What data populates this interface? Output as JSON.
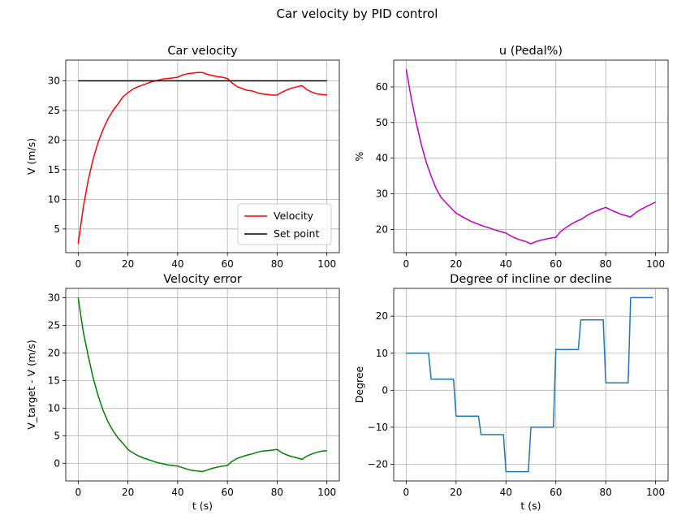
{
  "figure": {
    "suptitle": "Car velocity by PID control"
  },
  "chart_data": [
    {
      "type": "line",
      "title": "Car velocity",
      "xlabel": "",
      "ylabel": "V (m/s)",
      "xlim": [
        -5,
        105
      ],
      "ylim": [
        1,
        33.5
      ],
      "xticks": [
        0,
        20,
        40,
        60,
        80,
        100
      ],
      "yticks": [
        5,
        10,
        15,
        20,
        25,
        30
      ],
      "grid": true,
      "legend": "lower-right",
      "series": [
        {
          "name": "Velocity",
          "color": "#ff0000",
          "x": [
            0,
            2,
            4,
            6,
            8,
            10,
            12,
            14,
            16,
            18,
            20,
            22,
            24,
            26,
            28,
            30,
            32,
            34,
            36,
            38,
            40,
            42,
            44,
            46,
            48,
            50,
            52,
            54,
            56,
            58,
            60,
            62,
            64,
            66,
            68,
            70,
            72,
            74,
            76,
            78,
            80,
            82,
            84,
            86,
            88,
            90,
            92,
            94,
            96,
            98,
            100
          ],
          "values": [
            2.5,
            8.5,
            13.2,
            16.8,
            19.6,
            21.8,
            23.6,
            25.0,
            26.1,
            27.3,
            28.0,
            28.6,
            29.0,
            29.3,
            29.6,
            29.9,
            30.1,
            30.3,
            30.4,
            30.5,
            30.6,
            31.0,
            31.2,
            31.3,
            31.4,
            31.4,
            31.1,
            30.9,
            30.7,
            30.6,
            30.4,
            29.6,
            29.0,
            28.7,
            28.4,
            28.3,
            28.0,
            27.8,
            27.7,
            27.6,
            27.6,
            28.1,
            28.5,
            28.8,
            29.0,
            29.2,
            28.5,
            28.1,
            27.8,
            27.7,
            27.6
          ]
        },
        {
          "name": "Set point",
          "color": "#000000",
          "x": [
            0,
            100
          ],
          "values": [
            30,
            30
          ]
        }
      ]
    },
    {
      "type": "line",
      "title": "u (Pedal%)",
      "xlabel": "",
      "ylabel": "%",
      "xlim": [
        -5,
        105
      ],
      "ylim": [
        13.5,
        67.5
      ],
      "xticks": [
        0,
        20,
        40,
        60,
        80,
        100
      ],
      "yticks": [
        20,
        30,
        40,
        50,
        60
      ],
      "grid": true,
      "series": [
        {
          "color": "#bf00bf",
          "x": [
            0,
            2,
            4,
            6,
            8,
            10,
            12,
            14,
            16,
            18,
            20,
            22,
            24,
            26,
            28,
            30,
            32,
            34,
            36,
            38,
            40,
            42,
            44,
            46,
            48,
            50,
            52,
            54,
            56,
            58,
            60,
            62,
            64,
            66,
            68,
            70,
            72,
            74,
            76,
            78,
            80,
            82,
            84,
            86,
            88,
            90,
            92,
            94,
            96,
            98,
            100
          ],
          "values": [
            65.0,
            57.0,
            50.0,
            44.0,
            39.0,
            35.0,
            31.5,
            29.0,
            27.5,
            26.0,
            24.6,
            23.8,
            23.0,
            22.3,
            21.7,
            21.2,
            20.7,
            20.3,
            19.8,
            19.4,
            19.0,
            18.2,
            17.5,
            17.0,
            16.6,
            16.0,
            16.6,
            17.0,
            17.3,
            17.6,
            17.8,
            19.5,
            20.5,
            21.4,
            22.2,
            22.8,
            23.7,
            24.5,
            25.1,
            25.7,
            26.2,
            25.5,
            24.9,
            24.3,
            23.9,
            23.5,
            24.7,
            25.6,
            26.3,
            27.0,
            27.7
          ]
        }
      ]
    },
    {
      "type": "line",
      "title": "Velocity error",
      "xlabel": "t (s)",
      "ylabel": "V_target - V (m/s)",
      "xlim": [
        -5,
        105
      ],
      "ylim": [
        -3.2,
        31.7
      ],
      "xticks": [
        0,
        20,
        40,
        60,
        80,
        100
      ],
      "yticks": [
        0,
        5,
        10,
        15,
        20,
        25,
        30
      ],
      "grid": true,
      "series": [
        {
          "color": "#007f00",
          "x": [
            0,
            2,
            4,
            6,
            8,
            10,
            12,
            14,
            16,
            18,
            20,
            22,
            24,
            26,
            28,
            30,
            32,
            34,
            36,
            38,
            40,
            42,
            44,
            46,
            48,
            50,
            52,
            54,
            56,
            58,
            60,
            62,
            64,
            66,
            68,
            70,
            72,
            74,
            76,
            78,
            80,
            82,
            84,
            86,
            88,
            90,
            92,
            94,
            96,
            98,
            100
          ],
          "values": [
            30.0,
            24.0,
            19.5,
            15.5,
            12.3,
            9.6,
            7.5,
            5.9,
            4.6,
            3.6,
            2.5,
            1.9,
            1.4,
            1.0,
            0.7,
            0.4,
            0.1,
            -0.1,
            -0.3,
            -0.4,
            -0.5,
            -0.8,
            -1.1,
            -1.3,
            -1.4,
            -1.5,
            -1.2,
            -0.9,
            -0.7,
            -0.5,
            -0.4,
            0.4,
            0.9,
            1.2,
            1.5,
            1.7,
            2.0,
            2.2,
            2.3,
            2.4,
            2.5,
            1.9,
            1.5,
            1.2,
            1.0,
            0.7,
            1.3,
            1.7,
            2.0,
            2.2,
            2.3
          ]
        }
      ]
    },
    {
      "type": "line",
      "title": "Degree of incline or decline",
      "xlabel": "t (s)",
      "ylabel": "Degree",
      "xlim": [
        -5,
        105
      ],
      "ylim": [
        -24.5,
        27.5
      ],
      "xticks": [
        0,
        20,
        40,
        60,
        80,
        100
      ],
      "yticks": [
        -20,
        -10,
        0,
        10,
        20
      ],
      "grid": true,
      "series": [
        {
          "color": "#1f77b4",
          "x": [
            0,
            9,
            10,
            19,
            20,
            29,
            30,
            39,
            40,
            49,
            50,
            59,
            60,
            69,
            70,
            79,
            80,
            89,
            90,
            99
          ],
          "values": [
            10,
            10,
            3,
            3,
            -7,
            -7,
            -12,
            -12,
            -22,
            -22,
            -10,
            -10,
            11,
            11,
            19,
            19,
            2,
            2,
            25,
            25
          ]
        }
      ]
    }
  ]
}
